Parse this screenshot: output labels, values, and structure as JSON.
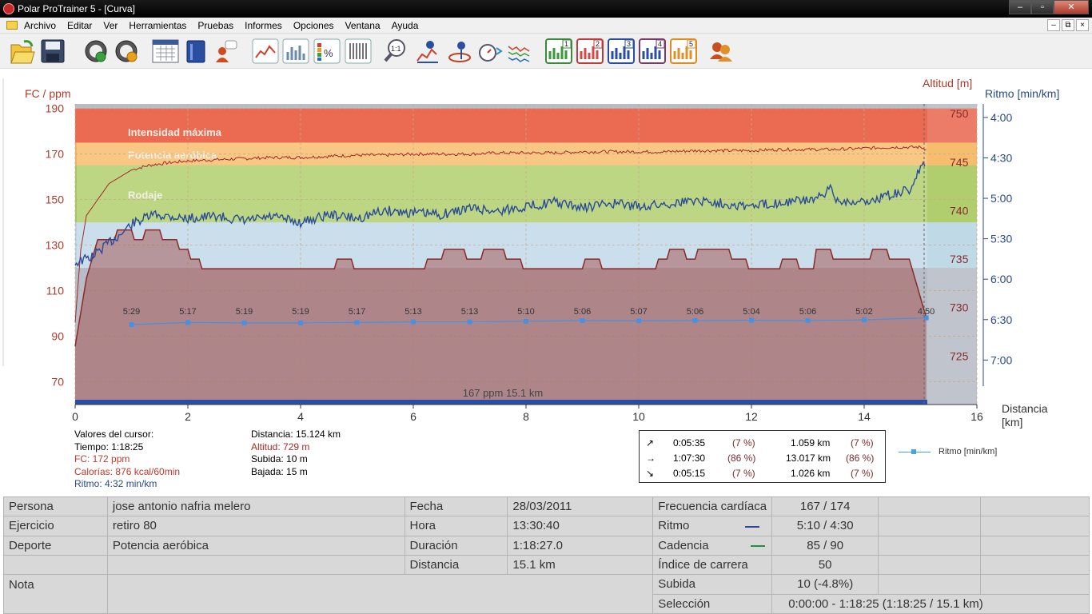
{
  "window": {
    "title": "Polar ProTrainer 5 - [Curva]",
    "minimize": "‒",
    "maximize": "▫",
    "close": "✕"
  },
  "menu": {
    "items": [
      "Archivo",
      "Editar",
      "Ver",
      "Herramientas",
      "Pruebas",
      "Informes",
      "Opciones",
      "Ventana",
      "Ayuda"
    ],
    "mdi_min": "–",
    "mdi_restore": "⧉",
    "mdi_close": "×"
  },
  "toolbar": {
    "buttons": [
      {
        "icon": "open-folder-icon"
      },
      {
        "icon": "save-disk-icon"
      },
      {
        "icon": "sync-icon"
      },
      {
        "icon": "settings-icon"
      },
      {
        "icon": "calendar-icon"
      },
      {
        "icon": "book-icon"
      },
      {
        "icon": "user-tip-icon"
      },
      {
        "icon": "curve-chart-icon"
      },
      {
        "icon": "bar-chart-icon"
      },
      {
        "icon": "percent-chart-icon"
      },
      {
        "icon": "table-icon"
      },
      {
        "icon": "zoom-icon"
      },
      {
        "icon": "info-chart-icon"
      },
      {
        "icon": "info-point-icon"
      },
      {
        "icon": "stopwatch-icon"
      },
      {
        "icon": "wave-chart-icon"
      },
      {
        "icon": "chart-1-icon",
        "label": "1"
      },
      {
        "icon": "chart-2-icon",
        "label": "2"
      },
      {
        "icon": "chart-3-icon",
        "label": "3"
      },
      {
        "icon": "chart-4-icon",
        "label": "4"
      },
      {
        "icon": "chart-5-icon",
        "label": "5"
      },
      {
        "icon": "users-icon"
      }
    ]
  },
  "colors": {
    "hr": "#a52a2a",
    "pace": "#2a4a9a",
    "lap_pace": "#4a90e0",
    "zone_max": "#ea6a52",
    "zone_aerobic": "#f5b45a",
    "zone_rodaje": "#a6c85a",
    "zone_light": "#b8d4e4"
  },
  "chart_data": {
    "type": "line",
    "xlabel": "Distancia\n[km]",
    "x_range": [
      0,
      16
    ],
    "x_ticks": [
      0,
      2,
      4,
      6,
      8,
      10,
      12,
      14,
      16
    ],
    "axes": {
      "left": {
        "label": "FC / ppm",
        "ticks": [
          70,
          90,
          110,
          130,
          150,
          170,
          190
        ],
        "range": [
          60,
          192
        ]
      },
      "right_altitude": {
        "label": "Altitud [m]",
        "ticks": [
          725,
          730,
          735,
          740,
          745,
          750
        ],
        "range": [
          720,
          751
        ]
      },
      "right_pace": {
        "label": "Ritmo [min/km]",
        "ticks": [
          "4:00",
          "4:30",
          "5:00",
          "5:30",
          "6:00",
          "6:30",
          "7:00"
        ],
        "range_min": [
          3.833,
          7.55
        ]
      }
    },
    "zones": [
      {
        "name": "Intensidad máxima",
        "from": 170,
        "to": 190
      },
      {
        "name": "Potencia aeróbica",
        "from": 165,
        "to": 175
      },
      {
        "name": "Rodaje",
        "from": 140,
        "to": 165
      },
      {
        "name": "",
        "from": 120,
        "to": 140
      }
    ],
    "series": [
      {
        "name": "FC",
        "x": [
          0,
          0.1,
          0.2,
          0.4,
          0.6,
          0.8,
          1.0,
          1.3,
          1.6,
          2.0,
          2.5,
          3.0,
          3.5,
          4.0,
          4.5,
          5.0,
          5.5,
          6.0,
          6.5,
          7.0,
          7.5,
          8.0,
          8.5,
          9.0,
          9.5,
          10.0,
          10.5,
          11.0,
          11.5,
          12.0,
          12.5,
          13.0,
          13.5,
          14.0,
          14.5,
          15.0,
          15.1
        ],
        "values": [
          96,
          128,
          143,
          150,
          157,
          160,
          163,
          165,
          166,
          167,
          167.5,
          168,
          168.5,
          168.5,
          169,
          169.5,
          169.5,
          170,
          170,
          170,
          170.5,
          170.5,
          170.5,
          171,
          171,
          171,
          171,
          171.5,
          171.5,
          171.5,
          172,
          172,
          172,
          172.5,
          173,
          173,
          172
        ]
      },
      {
        "name": "Altitud",
        "x": [
          0,
          0.2,
          0.4,
          0.7,
          0.75,
          1.0,
          1.05,
          1.2,
          1.25,
          1.5,
          1.55,
          1.8,
          1.85,
          2.0,
          2.05,
          2.2,
          2.25,
          4.6,
          4.65,
          4.9,
          4.95,
          6.2,
          6.25,
          6.5,
          6.55,
          6.9,
          6.95,
          7.2,
          7.25,
          7.6,
          7.65,
          7.9,
          7.95,
          9.0,
          9.05,
          9.3,
          9.35,
          10.3,
          10.35,
          10.5,
          10.55,
          10.8,
          10.85,
          11.0,
          11.05,
          11.6,
          11.65,
          11.9,
          11.95,
          12.5,
          12.55,
          12.8,
          12.85,
          13.1,
          13.15,
          13.4,
          13.45,
          14.1,
          14.15,
          14.4,
          14.45,
          14.8,
          14.85,
          15.1
        ],
        "values": [
          726,
          733,
          737,
          737,
          738,
          738,
          737,
          737,
          738,
          738,
          737,
          737,
          736,
          736,
          735,
          735,
          734,
          734,
          735,
          735,
          734,
          734,
          735,
          735,
          736,
          736,
          735,
          735,
          736,
          736,
          735,
          735,
          734,
          734,
          735,
          735,
          734,
          734,
          735,
          735,
          736,
          736,
          735,
          735,
          736,
          736,
          735,
          735,
          734,
          734,
          735,
          735,
          734,
          734,
          736,
          736,
          735,
          735,
          736,
          736,
          735,
          735,
          734,
          729
        ]
      },
      {
        "name": "Ritmo",
        "x": [
          0,
          0.3,
          0.6,
          0.8,
          1.0,
          1.4,
          2.0,
          2.5,
          3.0,
          3.5,
          4.0,
          4.5,
          5.0,
          5.5,
          6.0,
          6.5,
          7.0,
          7.5,
          8.0,
          8.5,
          9.0,
          9.5,
          10.0,
          10.5,
          11.0,
          11.5,
          12.0,
          12.5,
          13.0,
          13.3,
          13.4,
          13.5,
          14.0,
          14.5,
          14.8,
          15.0,
          15.1
        ],
        "values": [
          5.8,
          5.72,
          5.55,
          5.45,
          5.32,
          5.2,
          5.25,
          5.22,
          5.28,
          5.23,
          5.3,
          5.2,
          5.25,
          5.15,
          5.18,
          5.2,
          5.12,
          5.16,
          5.1,
          5.05,
          5.12,
          5.06,
          5.1,
          5.07,
          5.02,
          5.06,
          5.1,
          5.05,
          5.02,
          4.98,
          4.85,
          5.02,
          5.05,
          4.95,
          4.9,
          4.63,
          4.58
        ]
      },
      {
        "name": "Ritmo [min/km]",
        "x": [
          1,
          2,
          3,
          4,
          5,
          6,
          7,
          8,
          9,
          10,
          11,
          12,
          13,
          14,
          15.1
        ],
        "values": [
          5.483,
          5.283,
          5.317,
          5.317,
          5.283,
          5.217,
          5.217,
          5.167,
          5.1,
          5.117,
          5.1,
          5.067,
          5.1,
          5.033,
          4.833
        ],
        "labels": [
          "5:29",
          "5:17",
          "5:19",
          "5:19",
          "5:17",
          "5:13",
          "5:13",
          "5:10",
          "5:06",
          "5:07",
          "5:06",
          "5:04",
          "5:06",
          "5:02",
          "4:50"
        ]
      }
    ],
    "bottom_label": "167 ppm 15.1 km"
  },
  "cursor": {
    "header": "Valores del cursor:",
    "tiempo": "Tiempo: 1:18:25",
    "fc": "FC: 172 ppm",
    "calorias": "Calorías: 876 kcal/60min",
    "ritmo": "Ritmo: 4:32 min/km",
    "distancia": "Distancia: 15.124 km",
    "altitud": "Altitud: 729 m",
    "subida": "Subida: 10 m",
    "bajada": "Bajada: 15 m"
  },
  "summary": [
    {
      "arrow": "↗",
      "time": "0:05:35",
      "pct1": "(7 %)",
      "dist": "1.059 km",
      "pct2": "(7 %)"
    },
    {
      "arrow": "→",
      "time": "1:07:30",
      "pct1": "(86 %)",
      "dist": "13.017 km",
      "pct2": "(86 %)"
    },
    {
      "arrow": "↘",
      "time": "0:05:15",
      "pct1": "(7 %)",
      "dist": "1.026 km",
      "pct2": "(7 %)"
    }
  ],
  "legend": {
    "label": "Ritmo [min/km]"
  },
  "info": {
    "persona_label": "Persona",
    "persona": "jose antonio nafria melero",
    "ejercicio_label": "Ejercicio",
    "ejercicio": "retiro 80",
    "deporte_label": "Deporte",
    "deporte": "Potencia aeróbica",
    "nota_label": "Nota",
    "nota": "",
    "fecha_label": "Fecha",
    "fecha": "28/03/2011",
    "hora_label": "Hora",
    "hora": "13:30:40",
    "duracion_label": "Duración",
    "duracion": "1:18:27.0",
    "distancia_label": "Distancia",
    "distancia": "15.1 km",
    "fc_label": "Frecuencia cardíaca",
    "fc": "167 / 174",
    "ritmo_label": "Ritmo",
    "ritmo": "5:10 / 4:30",
    "cadencia_label": "Cadencia",
    "cadencia": "85 / 90",
    "indice_label": "Índice de carrera",
    "indice": "50",
    "subida_label": "Subida",
    "subida": "10 (-4.8%)",
    "seleccion_label": "Selección",
    "seleccion": "0:00:00 - 1:18:25 (1:18:25 / 15.1 km)"
  }
}
